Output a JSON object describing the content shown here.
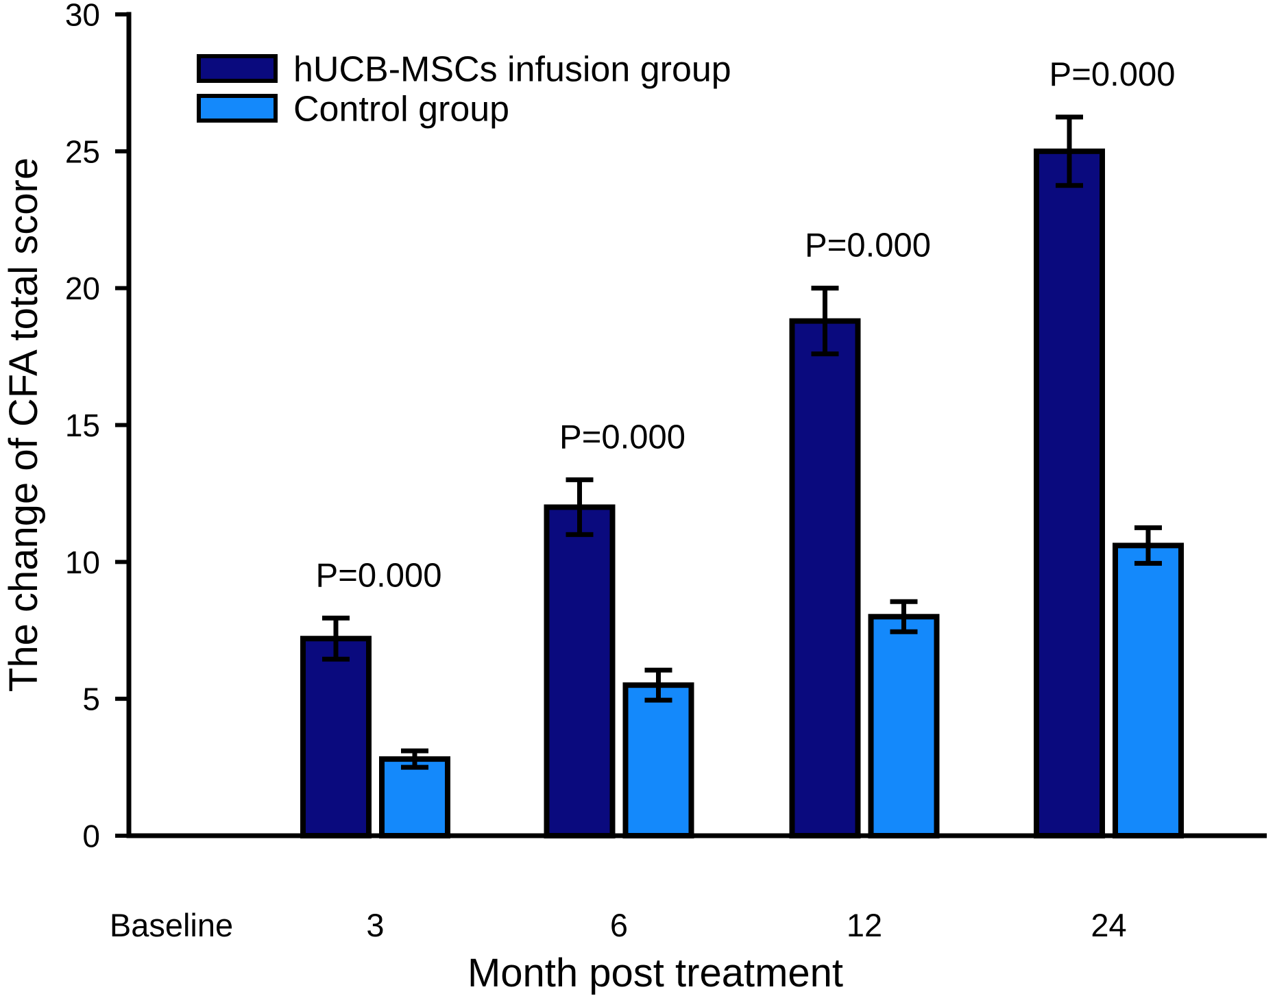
{
  "chart_data": {
    "type": "bar",
    "title": "",
    "xlabel": "Month post treatment",
    "ylabel": "The change of CFA total score",
    "categories": [
      "Baseline",
      "3",
      "6",
      "12",
      "24"
    ],
    "series": [
      {
        "name": "hUCB-MSCs infusion group",
        "color": "#0a0a7e",
        "values": [
          null,
          7.2,
          12.0,
          18.8,
          25.0
        ],
        "errors": [
          null,
          0.75,
          1.0,
          1.2,
          1.25
        ]
      },
      {
        "name": "Control group",
        "color": "#1489fb",
        "values": [
          null,
          2.8,
          5.5,
          8.0,
          10.6
        ],
        "errors": [
          null,
          0.3,
          0.55,
          0.55,
          0.65
        ]
      }
    ],
    "annotations": [
      {
        "category": "3",
        "text": "P=0.000"
      },
      {
        "category": "6",
        "text": "P=0.000"
      },
      {
        "category": "12",
        "text": "P=0.000"
      },
      {
        "category": "24",
        "text": "P=0.000"
      }
    ],
    "ylim": [
      0,
      30
    ],
    "yticks": [
      0,
      5,
      10,
      15,
      20,
      25,
      30
    ],
    "legend_position": "top-left-inside",
    "grid": false,
    "error_bars": "symmetric, capped, both directions",
    "axis_color": "#000000",
    "background_color": "#ffffff"
  }
}
